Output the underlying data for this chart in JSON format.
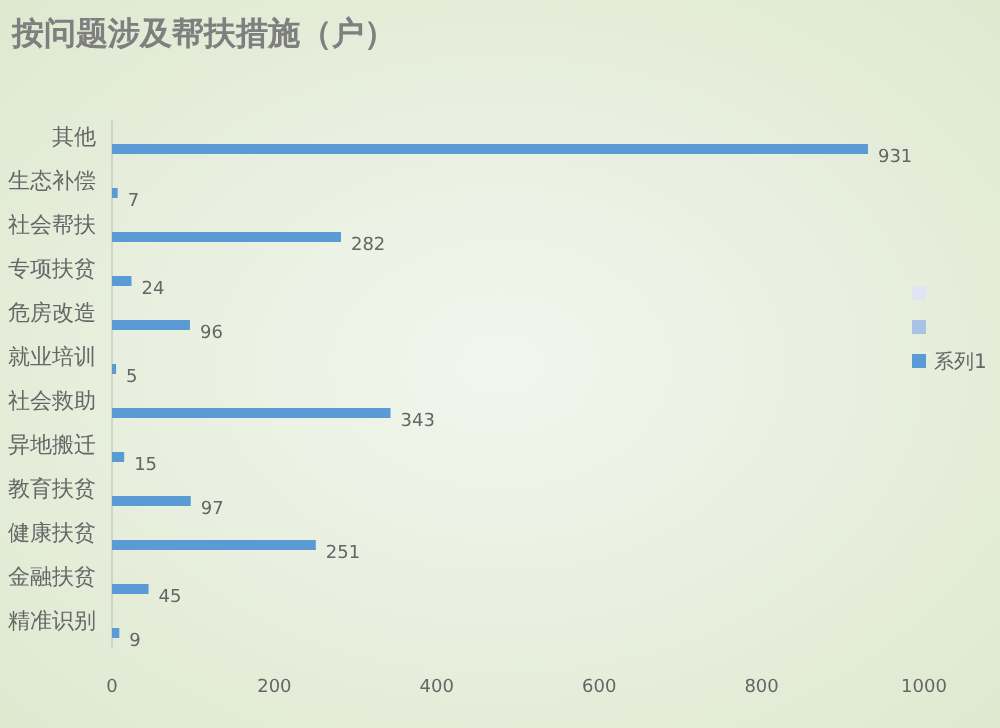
{
  "chart_data": {
    "type": "bar",
    "orientation": "horizontal",
    "title": "按问题涉及帮扶措施（户）",
    "categories": [
      "其他",
      "生态补偿",
      "社会帮扶",
      "专项扶贫",
      "危房改造",
      "就业培训",
      "社会救助",
      "异地搬迁",
      "教育扶贫",
      "健康扶贫",
      "金融扶贫",
      "精准识别"
    ],
    "series": [
      {
        "color": "#dde6f2",
        "values": [
          null,
          null,
          null,
          null,
          null,
          null,
          null,
          null,
          null,
          null,
          null,
          null
        ]
      },
      {
        "color": "#a9c3e6",
        "values": [
          null,
          null,
          null,
          null,
          null,
          null,
          null,
          null,
          null,
          null,
          null,
          null
        ]
      },
      {
        "name": "系列1",
        "color": "#5b9bd5",
        "values": [
          931,
          7,
          282,
          24,
          96,
          5,
          343,
          15,
          97,
          251,
          45,
          9
        ]
      }
    ],
    "xlim": [
      0,
      1000
    ],
    "xticks": [
      0,
      200,
      400,
      600,
      800,
      1000
    ],
    "data_labels": true,
    "grid": false,
    "legend": "right"
  }
}
